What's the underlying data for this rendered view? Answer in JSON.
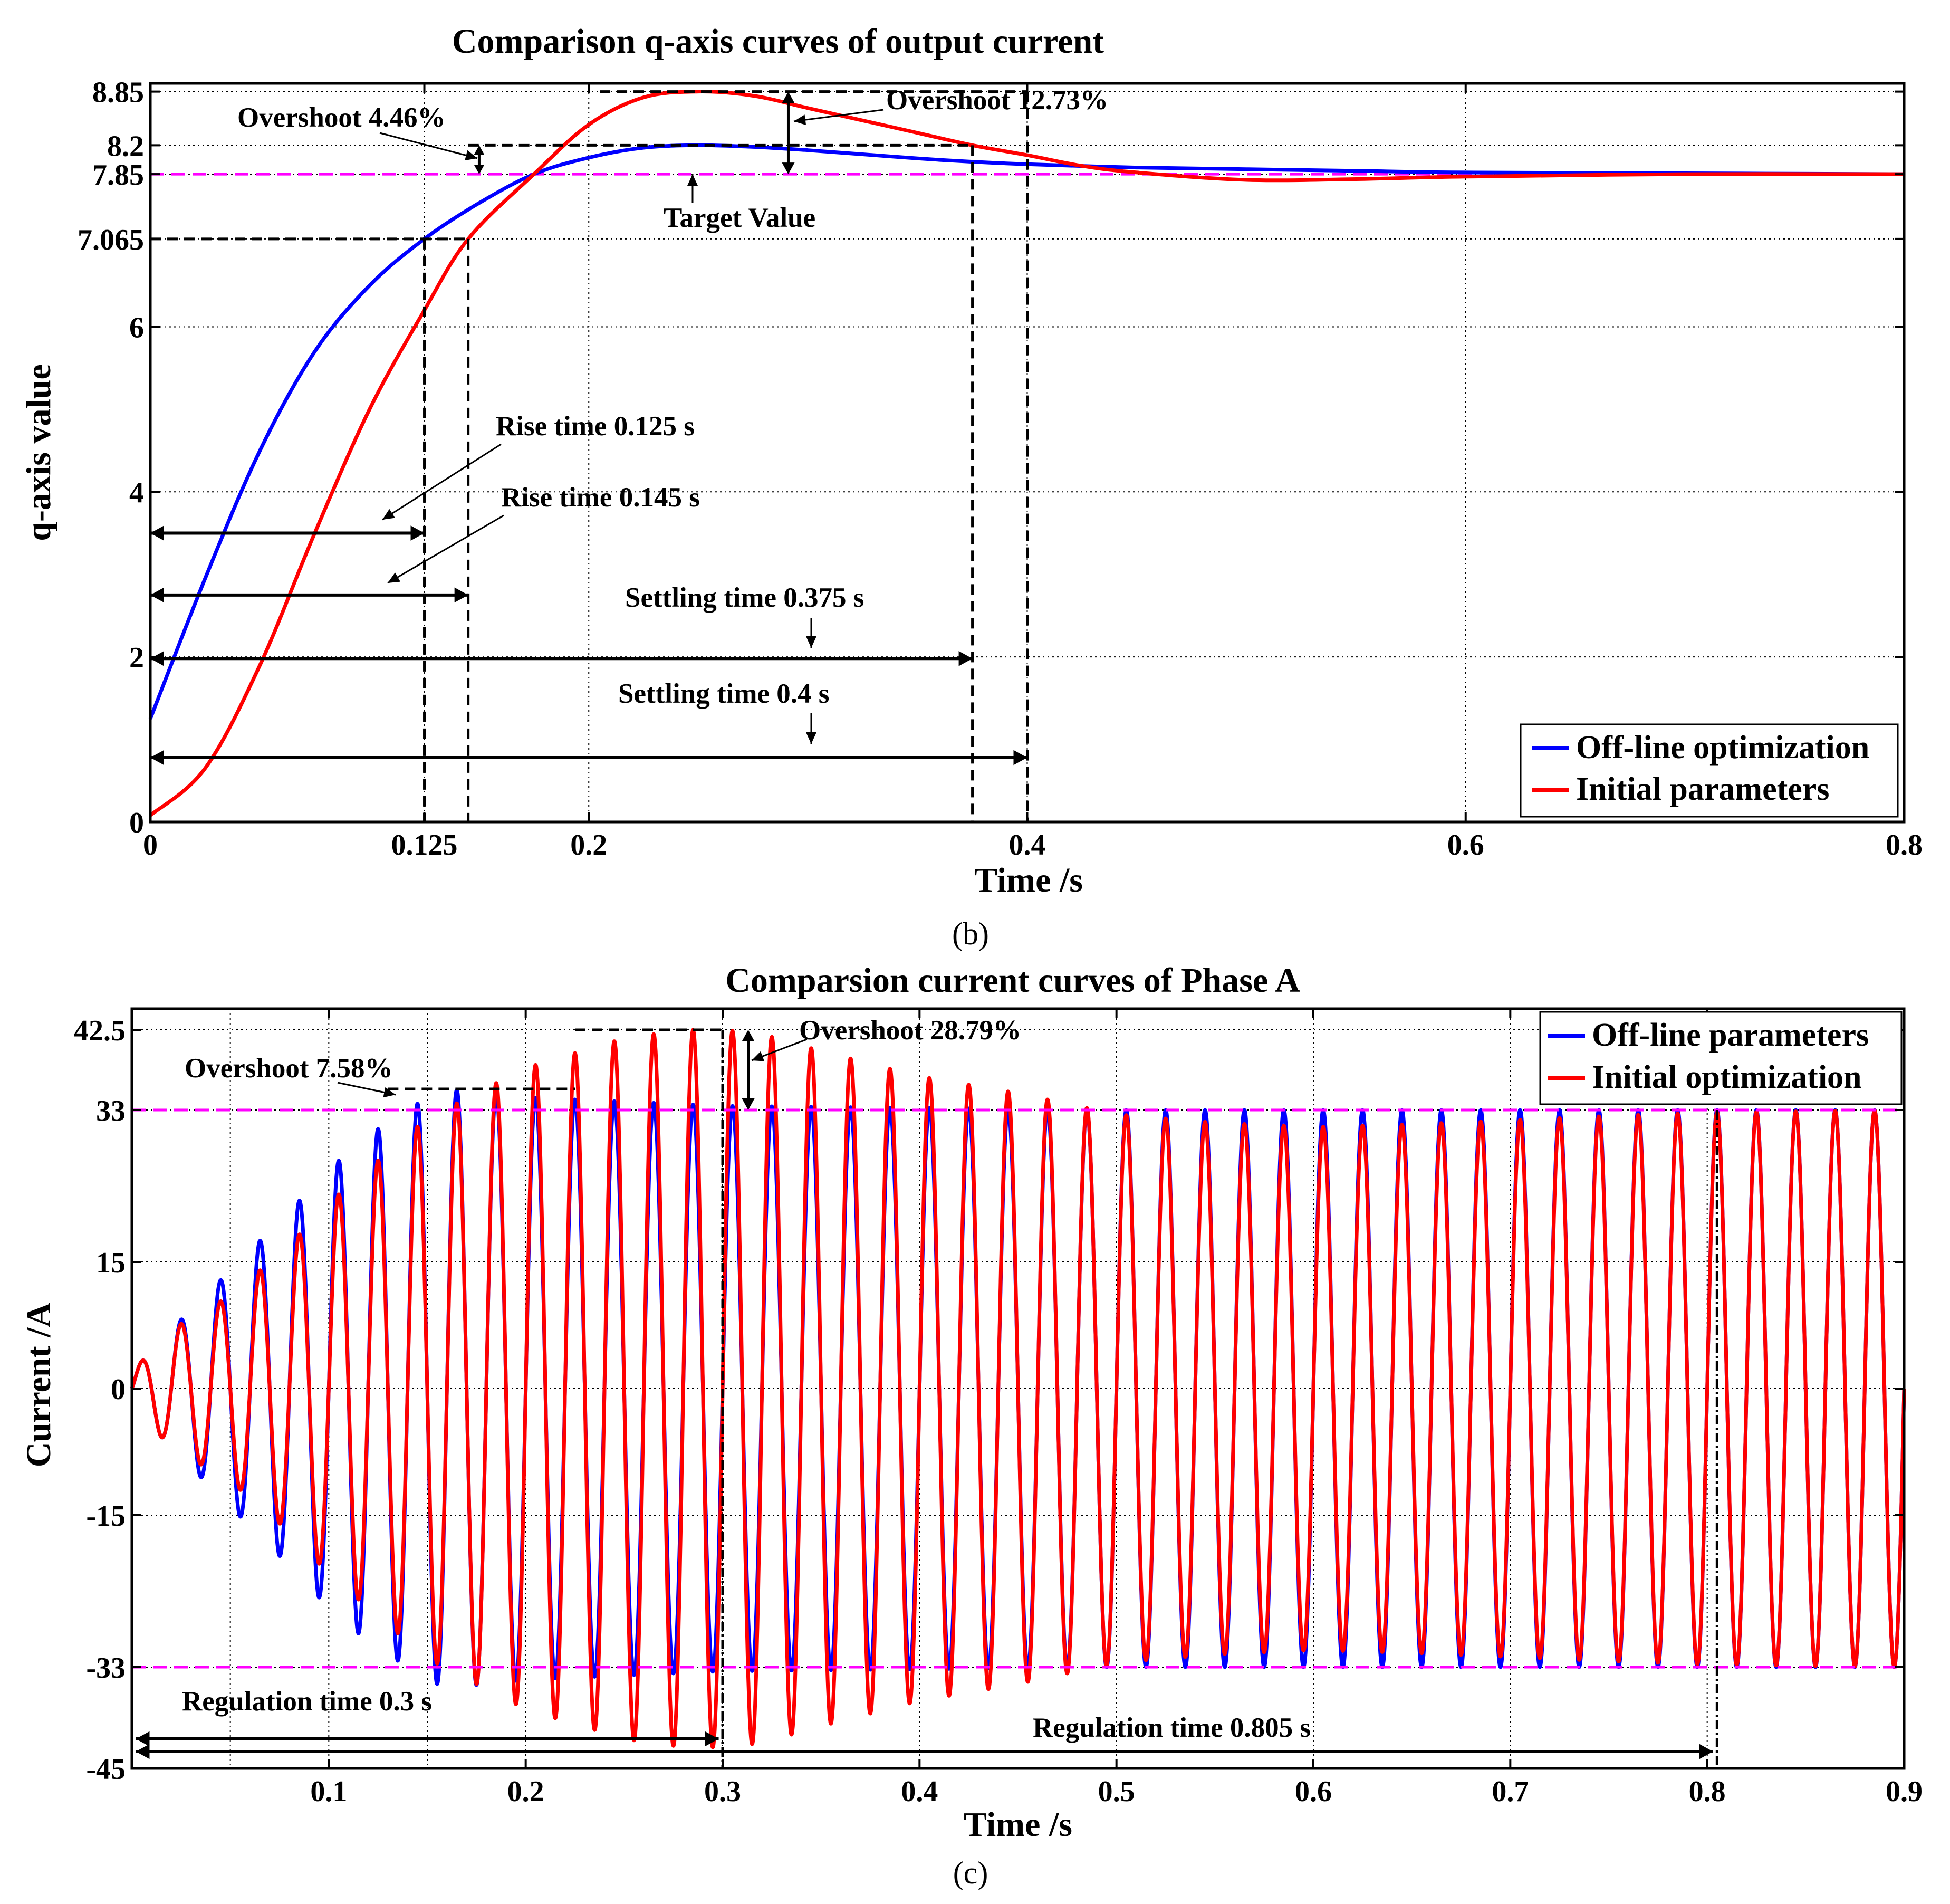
{
  "chart_data": [
    {
      "type": "line",
      "panel": "b",
      "panel_label": "(b)",
      "title": "Comparison q-axis curves of output current",
      "xlabel": "Time /s",
      "ylabel": "q-axis value",
      "xlim": [
        0,
        0.8
      ],
      "ylim": [
        0,
        8.95
      ],
      "x_ticks": [
        0,
        0.125,
        0.2,
        0.4,
        0.6,
        0.8
      ],
      "x_tick_labels": [
        "0",
        "0.125",
        "0.2",
        "0.4",
        "0.6",
        "0.8"
      ],
      "y_ticks": [
        0,
        2,
        4,
        6,
        7.065,
        7.85,
        8.2,
        8.85
      ],
      "y_tick_labels": [
        "0",
        "2",
        "4",
        "6",
        "7.065",
        "7.85",
        "8.2",
        "8.85"
      ],
      "grid": true,
      "legend_position": "bottom-right",
      "target_value": 7.85,
      "series": [
        {
          "name": "Off-line optimization",
          "color": "#0000ff",
          "x": [
            0,
            0.025,
            0.05,
            0.075,
            0.1,
            0.125,
            0.15,
            0.175,
            0.2,
            0.225,
            0.25,
            0.275,
            0.3,
            0.325,
            0.35,
            0.375,
            0.4,
            0.45,
            0.5,
            0.55,
            0.6,
            0.7,
            0.8
          ],
          "values": [
            1.25,
            2.95,
            4.5,
            5.7,
            6.5,
            7.065,
            7.5,
            7.85,
            8.05,
            8.17,
            8.2,
            8.18,
            8.14,
            8.09,
            8.04,
            8.0,
            7.97,
            7.93,
            7.91,
            7.89,
            7.87,
            7.86,
            7.85
          ]
        },
        {
          "name": "Initial parameters",
          "color": "#ff0000",
          "x": [
            0,
            0.025,
            0.05,
            0.075,
            0.1,
            0.125,
            0.145,
            0.175,
            0.2,
            0.225,
            0.25,
            0.275,
            0.3,
            0.325,
            0.35,
            0.375,
            0.4,
            0.425,
            0.45,
            0.5,
            0.55,
            0.6,
            0.7,
            0.8
          ],
          "values": [
            0.08,
            0.65,
            1.9,
            3.5,
            5.0,
            6.2,
            7.065,
            7.85,
            8.45,
            8.78,
            8.85,
            8.8,
            8.65,
            8.5,
            8.35,
            8.2,
            8.08,
            7.95,
            7.87,
            7.78,
            7.79,
            7.82,
            7.85,
            7.85
          ]
        }
      ],
      "annotations": [
        {
          "text": "Overshoot 12.73%"
        },
        {
          "text": "Overshoot 4.46%"
        },
        {
          "text": "Target Value"
        },
        {
          "text": "Rise time 0.125 s"
        },
        {
          "text": "Rise time 0.145 s"
        },
        {
          "text": "Settling time 0.375 s"
        },
        {
          "text": "Settling time 0.4 s"
        }
      ]
    },
    {
      "type": "line",
      "panel": "c",
      "panel_label": "(c)",
      "title": "Comparsion current curves of Phase A",
      "xlabel": "Time /s",
      "ylabel": "Current /A",
      "xlim": [
        0,
        0.9
      ],
      "ylim": [
        -45,
        45
      ],
      "x_ticks": [
        0.1,
        0.2,
        0.3,
        0.4,
        0.5,
        0.6,
        0.7,
        0.8,
        0.9
      ],
      "x_tick_labels": [
        "0.1",
        "0.2",
        "0.3",
        "0.4",
        "0.5",
        "0.6",
        "0.7",
        "0.8",
        "0.9"
      ],
      "y_ticks": [
        -45,
        -33,
        -15,
        0,
        15,
        33,
        42.5
      ],
      "y_tick_labels": [
        "-45",
        "-33",
        "-15",
        "0",
        "15",
        "33",
        "42.5"
      ],
      "grid": true,
      "legend_position": "top-right",
      "frequency_hz": 50,
      "reference_amplitude": 33,
      "series": [
        {
          "name": "Off-line parameters",
          "color": "#0000ff",
          "envelope_t": [
            0,
            0.02,
            0.05,
            0.08,
            0.1,
            0.12,
            0.14,
            0.15,
            0.16,
            0.2,
            0.3,
            0.5,
            0.9
          ],
          "envelope_amp": [
            2,
            7,
            14,
            21,
            26,
            30,
            33,
            34.5,
            35.5,
            34.5,
            33.5,
            33,
            33
          ]
        },
        {
          "name": "Initial optimization",
          "color": "#ff0000",
          "envelope_t": [
            0,
            0.02,
            0.05,
            0.08,
            0.1,
            0.12,
            0.15,
            0.2,
            0.25,
            0.28,
            0.3,
            0.32,
            0.35,
            0.4,
            0.45,
            0.5,
            0.55,
            0.6,
            0.65,
            0.7,
            0.75,
            0.8,
            0.9
          ],
          "envelope_amp": [
            2,
            7,
            11,
            17,
            22,
            26,
            32,
            38,
            41.5,
            42.5,
            42.5,
            42,
            40,
            37,
            35,
            32.5,
            31.5,
            31,
            31.3,
            31.8,
            32.3,
            32.7,
            33
          ]
        }
      ],
      "annotations": [
        {
          "text": "Overshoot 28.79%"
        },
        {
          "text": "Overshoot 7.58%"
        },
        {
          "text": "Regulation time 0.3 s"
        },
        {
          "text": "Regulation time 0.805 s"
        }
      ]
    }
  ]
}
